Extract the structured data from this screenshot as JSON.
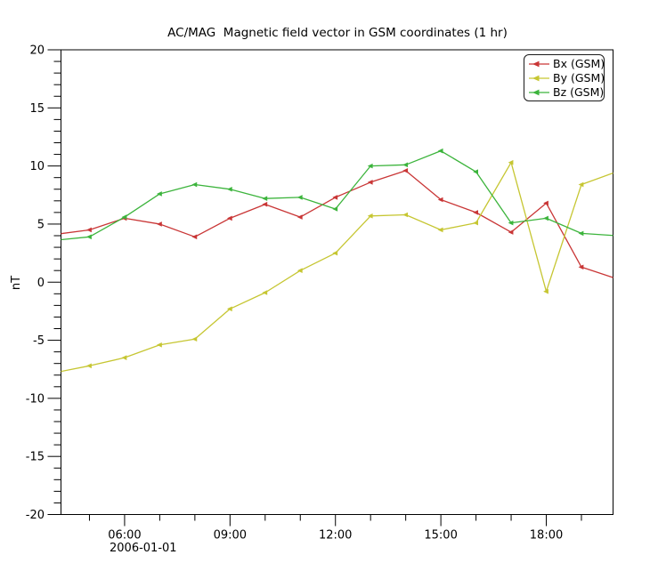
{
  "window": {
    "background": "#ffffff"
  },
  "chart_data": {
    "type": "line",
    "title": "AC/MAG  Magnetic field vector in GSM coordinates (1 hr)",
    "ylabel": "nT",
    "date_label": "2006-01-01",
    "grid": false,
    "legend_position": "top-right",
    "ylim": [
      -20,
      20
    ],
    "y_major_ticks": [
      20,
      15,
      10,
      5,
      0,
      -5,
      -10,
      -15,
      -20
    ],
    "y_tick_labels": [
      "20",
      "15",
      "10",
      "5",
      "0",
      "-5",
      "-10",
      "-15",
      "-20"
    ],
    "y_minor_step": 1,
    "xlim_hours": [
      4.19,
      19.9
    ],
    "x_major_tick_hours": [
      6,
      9,
      12,
      15,
      18
    ],
    "x_tick_labels": [
      "06:00",
      "09:00",
      "12:00",
      "15:00",
      "18:00"
    ],
    "x_minor_step_hours": 1,
    "x_hours": [
      4,
      5,
      6,
      7,
      8,
      9,
      10,
      11,
      12,
      13,
      14,
      15,
      16,
      17,
      18,
      19,
      20
    ],
    "series": [
      {
        "name": "Bx (GSM)",
        "color": "#c93636",
        "values": [
          4.1,
          4.5,
          5.5,
          5.0,
          3.9,
          5.5,
          6.7,
          5.6,
          7.3,
          8.6,
          9.6,
          7.1,
          6.0,
          4.3,
          6.8,
          1.3,
          0.3
        ]
      },
      {
        "name": "By (GSM)",
        "color": "#c6c632",
        "values": [
          -7.8,
          -7.2,
          -6.5,
          -5.4,
          -4.9,
          -2.3,
          -0.9,
          1.0,
          2.5,
          5.7,
          5.8,
          4.5,
          5.1,
          10.3,
          -0.8,
          8.4,
          9.5
        ]
      },
      {
        "name": "Bz (GSM)",
        "color": "#3cb43c",
        "values": [
          3.6,
          3.9,
          5.6,
          7.6,
          8.4,
          8.0,
          7.2,
          7.3,
          6.3,
          10.0,
          10.1,
          11.3,
          9.5,
          5.1,
          5.5,
          4.2,
          4.0
        ]
      }
    ]
  }
}
